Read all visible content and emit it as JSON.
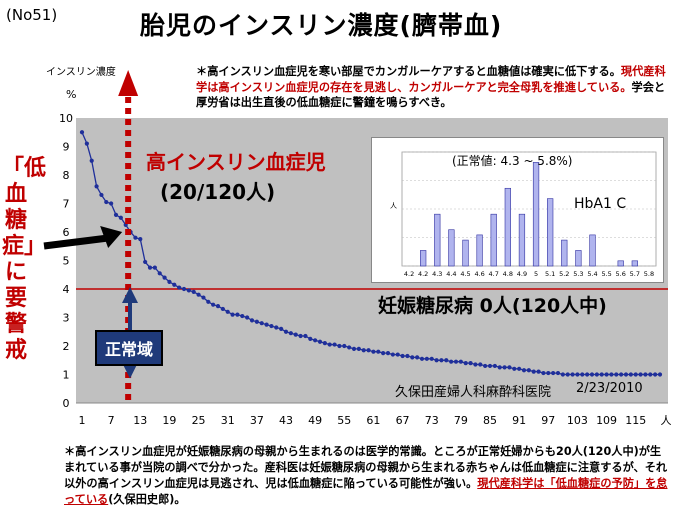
{
  "header": {
    "slide_no": "(No51)",
    "title": "胎児のインスリン濃度(臍帯血)"
  },
  "notes": {
    "top_part1": "＊高インスリン血症児を寒い部屋でカンガルーケアすると血糖値は確実に低下する。",
    "top_red": "現代産科学は高インスリン血症児の存在を見逃し、カンガルーケアと完全母乳を推進している。",
    "top_part2": "学会と厚労省は出生直後の低血糖症に警鐘を鳴らすべき。",
    "bottom_part1": "＊高インスリン血症児が妊娠糖尿病の母親から生まれるのは医学的常識。ところが正常妊婦からも20人(120人中)が生まれている事が当院の調べで分かった。産科医は妊娠糖尿病の母親から生まれる赤ちゃんは低血糖症に注意するが、それ以外の高インスリン血症児は見逃され、児は低血糖症に陥っている可能性が強い。",
    "bottom_red": "現代産科学は「低血糖症の予防」を怠っている",
    "bottom_part2": "(久保田史郎)。"
  },
  "annotations": {
    "warning": "「低血糖症」に要警戒",
    "high_insulin_title": "高インスリン血症児",
    "high_insulin_count": "(20/120人)",
    "gdm": "妊娠糖尿病 0人(120人中)",
    "normal_range": "正常域",
    "clinic": "久保田産婦人科麻酔科医院",
    "date": "2/23/2010",
    "inset_normal": "(正常値: 4.3 ~ 5.8%)",
    "inset_label": "HbA1 C"
  },
  "colors": {
    "plot_bg": "#c0c0c0",
    "series": "#1f2f9a",
    "threshold": "#c00000",
    "bar_fill": "#b0b4ee"
  },
  "chart_data": [
    {
      "type": "line",
      "title": "胎児のインスリン濃度(臍帯血)",
      "ylabel": "インスリン濃度",
      "yunit": "%",
      "xunit": "人",
      "ylim": [
        0,
        10
      ],
      "xlim": [
        0,
        120
      ],
      "yticks": [
        "0",
        "1",
        "2",
        "3",
        "4",
        "5",
        "6",
        "7",
        "8",
        "9",
        "10"
      ],
      "xticks": [
        "1",
        "7",
        "13",
        "19",
        "25",
        "31",
        "37",
        "43",
        "49",
        "55",
        "61",
        "67",
        "73",
        "79",
        "85",
        "91",
        "97",
        "103",
        "109",
        "115"
      ],
      "threshold": 4,
      "marker_x": 10,
      "grid": false,
      "values": [
        9.5,
        9.1,
        8.5,
        7.6,
        7.3,
        7.05,
        7.0,
        6.6,
        6.5,
        6.25,
        6.0,
        5.8,
        5.75,
        4.95,
        4.75,
        4.75,
        4.55,
        4.4,
        4.25,
        4.15,
        4.05,
        4.0,
        3.95,
        3.9,
        3.8,
        3.7,
        3.55,
        3.45,
        3.4,
        3.3,
        3.2,
        3.1,
        3.1,
        3.05,
        3.0,
        2.9,
        2.85,
        2.8,
        2.75,
        2.7,
        2.65,
        2.6,
        2.5,
        2.45,
        2.4,
        2.35,
        2.35,
        2.25,
        2.2,
        2.15,
        2.1,
        2.05,
        2.05,
        2.0,
        2.0,
        1.95,
        1.9,
        1.9,
        1.85,
        1.85,
        1.8,
        1.8,
        1.75,
        1.75,
        1.7,
        1.7,
        1.65,
        1.65,
        1.6,
        1.6,
        1.55,
        1.55,
        1.55,
        1.5,
        1.5,
        1.5,
        1.45,
        1.45,
        1.45,
        1.4,
        1.4,
        1.35,
        1.35,
        1.3,
        1.3,
        1.3,
        1.25,
        1.25,
        1.25,
        1.2,
        1.2,
        1.15,
        1.15,
        1.1,
        1.1,
        1.05,
        1.05,
        1.05,
        1.05,
        1.0,
        1.0,
        1.0,
        1.0,
        1.0,
        1.0,
        1.0,
        1.0,
        1.0,
        1.0,
        1.0,
        1.0,
        1.0,
        1.0,
        1.0,
        1.0,
        1.0,
        1.0,
        1.0,
        1.0,
        1.0
      ]
    },
    {
      "type": "bar",
      "title": "HbA1 C",
      "ylabel": "人",
      "categories": [
        "4.2",
        "4.2",
        "4.3",
        "4.4",
        "4.5",
        "4.6",
        "4.7",
        "4.8",
        "4.9",
        "5",
        "5.1",
        "5.2",
        "5.3",
        "5.4",
        "5.5",
        "5.6",
        "5.7",
        "5.8"
      ],
      "values": [
        0,
        3,
        10,
        7,
        5,
        6,
        10,
        15,
        10,
        20,
        13,
        5,
        3,
        6,
        0,
        1,
        1,
        0
      ],
      "ylim": [
        0,
        22
      ]
    }
  ]
}
